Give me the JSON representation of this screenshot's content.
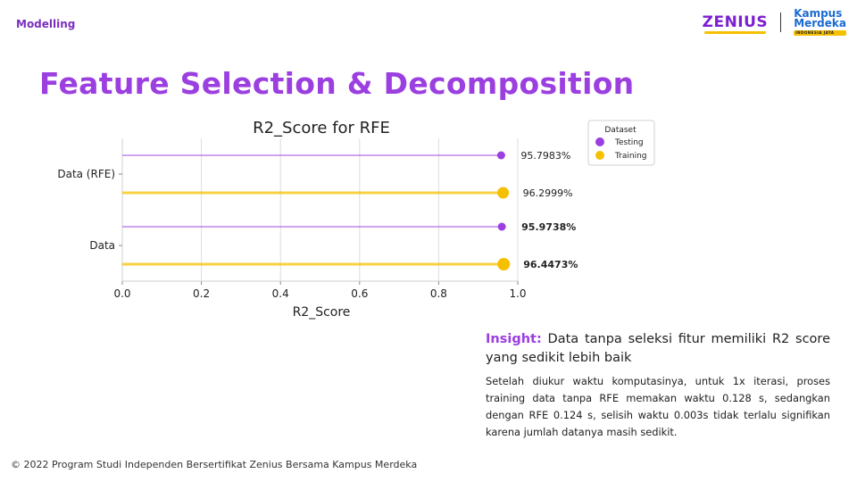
{
  "header": {
    "section": "Modelling",
    "logo_zenius": "ZENIUS",
    "logo_kampus_line1": "Kampus",
    "logo_kampus_line2": "Merdeka",
    "logo_kampus_tagline": "INDONESIA JAYA"
  },
  "page": {
    "title": "Feature Selection & Decomposition"
  },
  "chart_data": {
    "type": "bar",
    "orientation": "horizontal",
    "style": "lollipop",
    "title": "R2_Score for RFE",
    "xlabel": "R2_Score",
    "ylabel": "",
    "xlim": [
      0,
      1.0
    ],
    "xticks": [
      "0.0",
      "0.2",
      "0.4",
      "0.6",
      "0.8",
      "1.0"
    ],
    "categories": [
      "Data (RFE)",
      "Data"
    ],
    "series": [
      {
        "name": "Testing",
        "color": "#9b3fe0",
        "values": [
          0.957983,
          0.959738
        ],
        "labels": [
          "95.7983%",
          "95.9738%"
        ]
      },
      {
        "name": "Training",
        "color": "#f5c000",
        "values": [
          0.962999,
          0.964473
        ],
        "labels": [
          "96.2999%",
          "96.4473%"
        ]
      }
    ],
    "legend": {
      "title": "Dataset",
      "position": "top-right"
    },
    "grid": true
  },
  "insight": {
    "label": "Insight:",
    "headline": "Data tanpa seleksi fitur memiliki R2 score yang sedikit lebih baik",
    "body": "Setelah diukur waktu komputasinya, untuk 1x iterasi, proses training data tanpa RFE memakan waktu 0.128 s, sedangkan dengan RFE 0.124 s, selisih waktu 0.003s tidak terlalu signifikan karena jumlah datanya masih sedikit."
  },
  "footer": {
    "copyright": "© 2022 Program Studi Independen Bersertifikat Zenius Bersama Kampus Merdeka"
  }
}
